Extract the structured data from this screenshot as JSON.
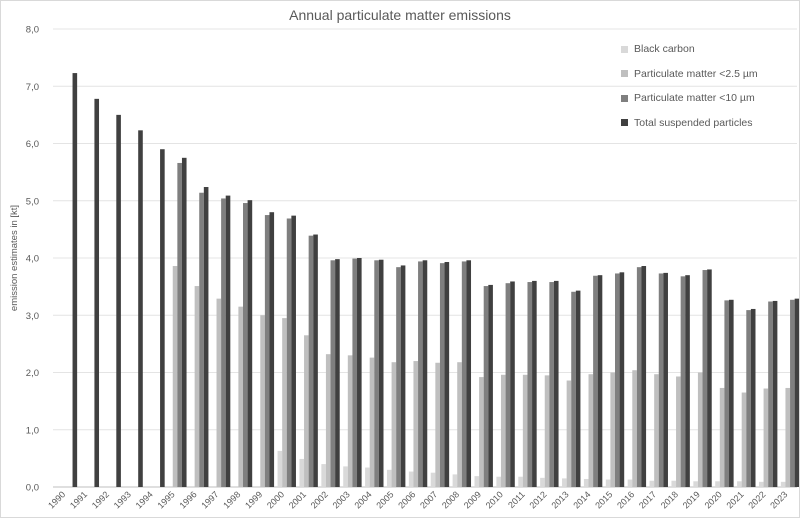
{
  "chart_data": {
    "type": "bar",
    "title": "Annual particulate matter emissions",
    "xlabel": "",
    "ylabel": "emission estimates in [kt]",
    "ylim": [
      0,
      8
    ],
    "yticks": [
      "0,0",
      "1,0",
      "2,0",
      "3,0",
      "4,0",
      "5,0",
      "6,0",
      "7,0",
      "8,0"
    ],
    "grid": true,
    "legend_position": "top-right",
    "categories": [
      "1990",
      "1991",
      "1992",
      "1993",
      "1994",
      "1995",
      "1996",
      "1997",
      "1998",
      "1999",
      "2000",
      "2001",
      "2002",
      "2003",
      "2004",
      "2005",
      "2006",
      "2007",
      "2008",
      "2009",
      "2010",
      "2011",
      "2012",
      "2013",
      "2014",
      "2015",
      "2016",
      "2017",
      "2018",
      "2019",
      "2020",
      "2021",
      "2022",
      "2023"
    ],
    "series": [
      {
        "name": "Black carbon",
        "color": "#d9d9d9",
        "values": [
          null,
          null,
          null,
          null,
          null,
          null,
          null,
          null,
          null,
          null,
          0.63,
          0.49,
          0.4,
          0.36,
          0.34,
          0.3,
          0.27,
          0.25,
          0.22,
          0.19,
          0.18,
          0.18,
          0.16,
          0.15,
          0.14,
          0.13,
          0.13,
          0.11,
          0.11,
          0.1,
          0.1,
          0.1,
          0.09,
          0.09
        ]
      },
      {
        "name": "Particulate matter <2.5 µm",
        "color": "#bfbfbf",
        "values": [
          null,
          null,
          null,
          null,
          null,
          3.86,
          3.51,
          3.29,
          3.15,
          3.0,
          2.95,
          2.65,
          2.32,
          2.3,
          2.26,
          2.18,
          2.2,
          2.17,
          2.18,
          1.92,
          1.96,
          1.96,
          1.95,
          1.86,
          1.97,
          2.0,
          2.04,
          1.97,
          1.93,
          2.0,
          1.73,
          1.65,
          1.72,
          1.73
        ]
      },
      {
        "name": "Particulate matter <10 µm",
        "color": "#7f7f7f",
        "values": [
          null,
          null,
          null,
          null,
          null,
          5.66,
          5.14,
          5.04,
          4.96,
          4.75,
          4.69,
          4.39,
          3.96,
          3.99,
          3.96,
          3.84,
          3.94,
          3.91,
          3.94,
          3.51,
          3.56,
          3.58,
          3.58,
          3.41,
          3.69,
          3.73,
          3.84,
          3.73,
          3.68,
          3.79,
          3.26,
          3.09,
          3.24,
          3.27
        ]
      },
      {
        "name": "Total suspended particles",
        "color": "#404040",
        "values": [
          7.23,
          6.78,
          6.5,
          6.23,
          5.9,
          5.75,
          5.24,
          5.09,
          5.01,
          4.8,
          4.74,
          4.41,
          3.98,
          4.0,
          3.97,
          3.87,
          3.96,
          3.93,
          3.96,
          3.53,
          3.59,
          3.6,
          3.6,
          3.43,
          3.7,
          3.75,
          3.86,
          3.74,
          3.7,
          3.8,
          3.27,
          3.11,
          3.25,
          3.29
        ]
      }
    ]
  }
}
